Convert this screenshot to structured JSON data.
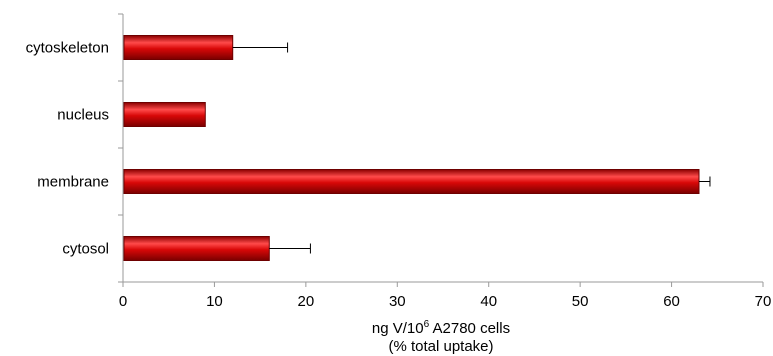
{
  "chart_data": {
    "type": "bar",
    "orientation": "horizontal",
    "categories": [
      "cytoskeleton",
      "nucleus",
      "membrane",
      "cytosol"
    ],
    "values": [
      12,
      9,
      63,
      16
    ],
    "errors": [
      6,
      0,
      1.2,
      4.5
    ],
    "xlim": [
      0,
      70
    ],
    "xticks": [
      "0",
      "10",
      "20",
      "30",
      "40",
      "50",
      "60",
      "70"
    ],
    "xlabel_line1_prefix": "ng V/10",
    "xlabel_sup": "6",
    "xlabel_line1_suffix": " A2780 cells",
    "xlabel_line2": "(% total uptake)",
    "grid": false,
    "bar_color": "#c80000",
    "bar_highlight": "#ff4a4a",
    "bar_edge": "#6e0000"
  }
}
